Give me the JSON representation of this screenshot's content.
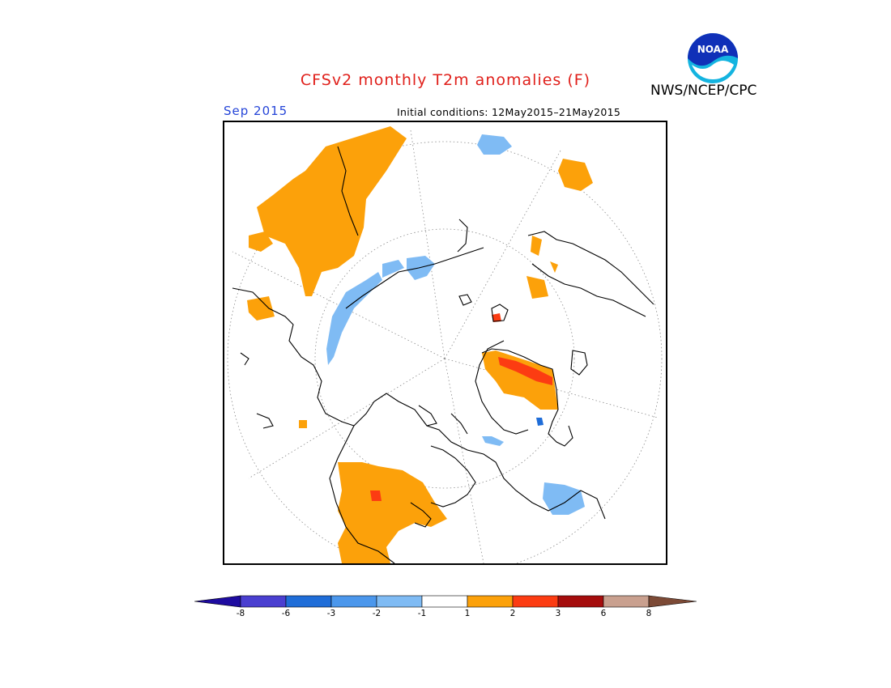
{
  "header": {
    "title": "CFSv2 monthly T2m anomalies (F)",
    "org": "NWS/NCEP/CPC",
    "logo_text": "NOAA",
    "period": "Sep 2015",
    "initial_conditions": "Initial conditions: 12May2015–21May2015"
  },
  "legend": {
    "labels": [
      "-8",
      "-6",
      "-3",
      "-2",
      "-1",
      "1",
      "2",
      "3",
      "6",
      "8"
    ],
    "colors": [
      "#1e0ba0",
      "#4a3fd0",
      "#1f6dd8",
      "#4b97ec",
      "#7fbbf4",
      "#ffffff",
      "#fca10a",
      "#fc3c12",
      "#a50d0d",
      "#c9a08f",
      "#7c4a36"
    ]
  },
  "colors": {
    "title": "#e0201b",
    "period": "#2545d8",
    "warm_1_2": "#fca10a",
    "warm_2_3": "#fc3c12",
    "warm_3_6": "#a50d0d",
    "cool_1_2": "#7fbbf4",
    "cool_2_3": "#4b97ec",
    "cool_3_6": "#1f6dd8"
  }
}
